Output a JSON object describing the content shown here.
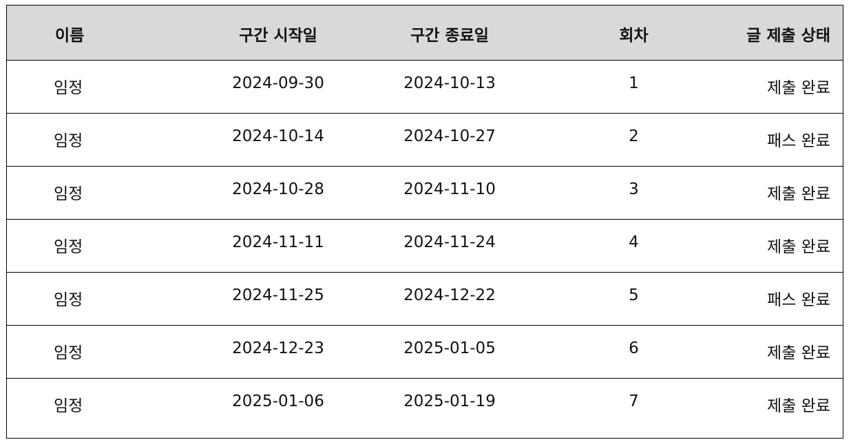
{
  "table": {
    "headers": [
      "이름",
      "구간 시작일",
      "구간 종료일",
      "회차",
      "글 제출 상태"
    ],
    "rows": [
      [
        "임정",
        "2024-09-30",
        "2024-10-13",
        "1",
        "제출 완료"
      ],
      [
        "임정",
        "2024-10-14",
        "2024-10-27",
        "2",
        "패스 완료"
      ],
      [
        "임정",
        "2024-10-28",
        "2024-11-10",
        "3",
        "제출 완료"
      ],
      [
        "임정",
        "2024-11-11",
        "2024-11-24",
        "4",
        "제출 완료"
      ],
      [
        "임정",
        "2024-11-25",
        "2024-12-22",
        "5",
        "패스 완료"
      ],
      [
        "임정",
        "2024-12-23",
        "2025-01-05",
        "6",
        "제출 완료"
      ],
      [
        "임정",
        "2025-01-06",
        "2025-01-19",
        "7",
        "제출 완료"
      ]
    ]
  },
  "colors": {
    "header_background": "#d9d9d9",
    "border": "#000000",
    "text": "#111111"
  }
}
